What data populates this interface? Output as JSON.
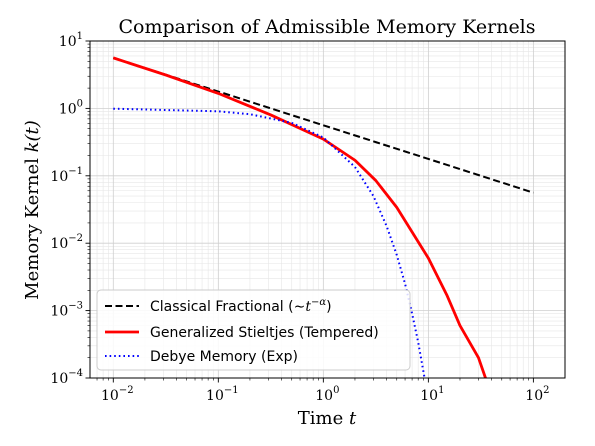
{
  "chart_data": {
    "type": "line",
    "title": "Comparison of Admissible Memory Kernels",
    "xlabel": {
      "text": "Time ",
      "var": "t"
    },
    "ylabel": {
      "text": "Memory Kernel ",
      "var": "k(t)"
    },
    "x_scale": "log",
    "y_scale": "log",
    "xlim": [
      0.006,
      200
    ],
    "ylim": [
      0.0001,
      10
    ],
    "grid": true,
    "legend_position": "lower-left",
    "x_ticks": [
      {
        "value": 0.01,
        "base": "10",
        "exp": "−2"
      },
      {
        "value": 0.1,
        "base": "10",
        "exp": "−1"
      },
      {
        "value": 1,
        "base": "10",
        "exp": "0"
      },
      {
        "value": 10,
        "base": "10",
        "exp": "1"
      },
      {
        "value": 100,
        "base": "10",
        "exp": "2"
      }
    ],
    "y_ticks": [
      {
        "value": 0.0001,
        "base": "10",
        "exp": "−4"
      },
      {
        "value": 0.001,
        "base": "10",
        "exp": "−3"
      },
      {
        "value": 0.01,
        "base": "10",
        "exp": "−2"
      },
      {
        "value": 0.1,
        "base": "10",
        "exp": "−1"
      },
      {
        "value": 1,
        "base": "10",
        "exp": "0"
      },
      {
        "value": 10,
        "base": "10",
        "exp": "1"
      }
    ],
    "series": [
      {
        "name": "Classical Fractional (∼t^−α)",
        "legend": {
          "text": "Classical Fractional (",
          "math_base": "∼t",
          "math_sup": "−α",
          "text_after": ")"
        },
        "color": "#000000",
        "style": "dashed",
        "x": [
          0.01,
          0.0316,
          0.1,
          0.316,
          1,
          3.16,
          10,
          31.6,
          100
        ],
        "y": [
          5.62,
          3.16,
          1.78,
          1.0,
          0.562,
          0.316,
          0.178,
          0.1,
          0.0562
        ]
      },
      {
        "name": "Generalized Stieltjes (Tempered)",
        "legend": {
          "text": "Generalized Stieltjes (Tempered)"
        },
        "color": "#ff0000",
        "style": "solid",
        "x": [
          0.01,
          0.0316,
          0.1,
          0.316,
          1,
          2,
          3.16,
          5,
          10,
          15,
          20,
          30,
          35
        ],
        "y": [
          5.62,
          3.13,
          1.67,
          0.8,
          0.35,
          0.17,
          0.085,
          0.034,
          0.006,
          0.0017,
          0.0006,
          0.0002,
          0.0001
        ]
      },
      {
        "name": "Debye Memory (Exp)",
        "legend": {
          "text": "Debye Memory (Exp)"
        },
        "color": "#0000ff",
        "style": "dotted",
        "x": [
          0.01,
          0.1,
          0.2,
          0.5,
          1,
          2,
          3,
          4,
          5,
          6,
          7,
          8,
          9.2
        ],
        "y": [
          0.99,
          0.905,
          0.82,
          0.61,
          0.37,
          0.135,
          0.05,
          0.018,
          0.0067,
          0.0025,
          0.0009,
          0.00034,
          0.0001
        ]
      }
    ]
  }
}
